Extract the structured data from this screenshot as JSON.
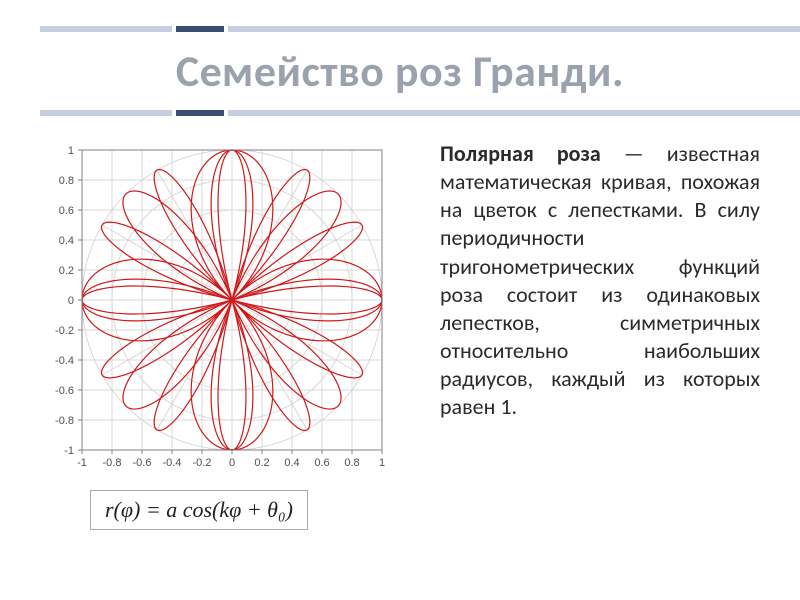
{
  "title": "Семейство роз Гранди.",
  "body_html": "<b>Полярная роза</b> — известная математическая кривая, похожая на цветок с лепестками. В силу периодичности тригонометрических функций роза состоит из одинаковых лепестков, симметричных относительно наибольших радиусов, каждый из которых равен 1.",
  "formula": "r(φ) = a cos(kφ + θ₀)",
  "chart": {
    "type": "polar-rose",
    "background_color": "#ffffff",
    "grid_color": "#d8d8d8",
    "grid_major_color": "#b8b8b8",
    "axis_color": "#808080",
    "tick_font_size": 11,
    "tick_color": "#505050",
    "xlim": [
      -1,
      1
    ],
    "ylim": [
      -1,
      1
    ],
    "tick_step": 0.2,
    "xticks": [
      -1,
      -0.8,
      -0.6,
      -0.4,
      -0.2,
      0,
      0.2,
      0.4,
      0.6,
      0.8,
      1
    ],
    "yticks": [
      -1,
      -0.8,
      -0.6,
      -0.4,
      -0.2,
      0,
      0.2,
      0.4,
      0.6,
      0.8,
      1
    ],
    "grid_circles_r": [
      0.2,
      0.4,
      0.6,
      0.8,
      1.0
    ],
    "grid_spokes_deg": [
      0,
      30,
      60,
      90,
      120,
      150,
      180,
      210,
      240,
      270,
      300,
      330
    ],
    "curves": [
      {
        "k": 2,
        "a": 1,
        "theta0": 0,
        "color": "#d01818",
        "line_width": 1.2
      },
      {
        "k": 4,
        "a": 1,
        "theta0": 0,
        "color": "#d01818",
        "line_width": 1.2
      },
      {
        "k": 6,
        "a": 1,
        "theta0": 0,
        "color": "#d01818",
        "line_width": 1.2
      }
    ]
  },
  "accent": {
    "light": "#c6cfdf",
    "dark": "#3b4d6e"
  }
}
